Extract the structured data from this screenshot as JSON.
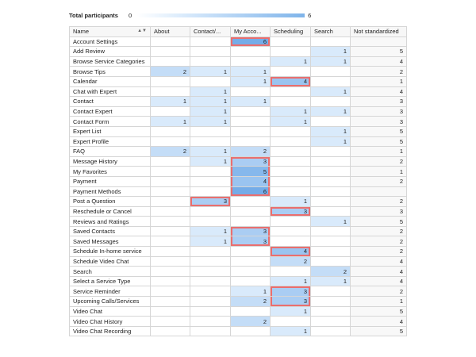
{
  "legend": {
    "label": "Total participants",
    "min": "0",
    "max": "6"
  },
  "columns": [
    "Name",
    "About",
    "Contact/...",
    "My Acco...",
    "Scheduling",
    "Search",
    "Not standardized"
  ],
  "rows": [
    {
      "name": "Account Settings",
      "cells": [
        "",
        "",
        "6",
        "",
        "",
        ""
      ]
    },
    {
      "name": "Add Review",
      "cells": [
        "",
        "",
        "",
        "",
        "1",
        "5"
      ]
    },
    {
      "name": "Browse Service Categories",
      "cells": [
        "",
        "",
        "",
        "1",
        "1",
        "4"
      ]
    },
    {
      "name": "Browse Tips",
      "cells": [
        "2",
        "1",
        "1",
        "",
        "",
        "2"
      ]
    },
    {
      "name": "Calendar",
      "cells": [
        "",
        "",
        "1",
        "4",
        "",
        "1"
      ]
    },
    {
      "name": "Chat with Expert",
      "cells": [
        "",
        "1",
        "",
        "",
        "1",
        "4"
      ]
    },
    {
      "name": "Contact",
      "cells": [
        "1",
        "1",
        "1",
        "",
        "",
        "3"
      ]
    },
    {
      "name": "Contact Expert",
      "cells": [
        "",
        "1",
        "",
        "1",
        "1",
        "3"
      ]
    },
    {
      "name": "Contact Form",
      "cells": [
        "1",
        "1",
        "",
        "1",
        "",
        "3"
      ]
    },
    {
      "name": "Expert List",
      "cells": [
        "",
        "",
        "",
        "",
        "1",
        "5"
      ]
    },
    {
      "name": "Expert Profile",
      "cells": [
        "",
        "",
        "",
        "",
        "1",
        "5"
      ]
    },
    {
      "name": "FAQ",
      "cells": [
        "2",
        "1",
        "2",
        "",
        "",
        "1"
      ]
    },
    {
      "name": "Message History",
      "cells": [
        "",
        "1",
        "3",
        "",
        "",
        "2"
      ]
    },
    {
      "name": "My Favorites",
      "cells": [
        "",
        "",
        "5",
        "",
        "",
        "1"
      ]
    },
    {
      "name": "Payment",
      "cells": [
        "",
        "",
        "4",
        "",
        "",
        "2"
      ]
    },
    {
      "name": "Payment Methods",
      "cells": [
        "",
        "",
        "6",
        "",
        "",
        ""
      ]
    },
    {
      "name": "Post a Question",
      "cells": [
        "",
        "3",
        "",
        "1",
        "",
        "2"
      ]
    },
    {
      "name": "Reschedule or Cancel",
      "cells": [
        "",
        "",
        "",
        "3",
        "",
        "3"
      ]
    },
    {
      "name": "Reviews and Ratings",
      "cells": [
        "",
        "",
        "",
        "",
        "1",
        "5"
      ]
    },
    {
      "name": "Saved Contacts",
      "cells": [
        "",
        "1",
        "3",
        "",
        "",
        "2"
      ]
    },
    {
      "name": "Saved Messages",
      "cells": [
        "",
        "1",
        "3",
        "",
        "",
        "2"
      ]
    },
    {
      "name": "Schedule In-home service",
      "cells": [
        "",
        "",
        "",
        "4",
        "",
        "2"
      ]
    },
    {
      "name": "Schedule Video Chat",
      "cells": [
        "",
        "",
        "",
        "2",
        "",
        "4"
      ]
    },
    {
      "name": "Search",
      "cells": [
        "",
        "",
        "",
        "",
        "2",
        "4"
      ]
    },
    {
      "name": "Select a Service Type",
      "cells": [
        "",
        "",
        "",
        "1",
        "1",
        "4"
      ]
    },
    {
      "name": "Service Reminder",
      "cells": [
        "",
        "",
        "1",
        "3",
        "",
        "2"
      ]
    },
    {
      "name": "Upcoming Calls/Services",
      "cells": [
        "",
        "",
        "2",
        "3",
        "",
        "1"
      ]
    },
    {
      "name": "Video Chat",
      "cells": [
        "",
        "",
        "",
        "1",
        "",
        "5"
      ]
    },
    {
      "name": "Video Chat History",
      "cells": [
        "",
        "",
        "2",
        "",
        "",
        "4"
      ]
    },
    {
      "name": "Video Chat Recording",
      "cells": [
        "",
        "",
        "",
        "1",
        "",
        "5"
      ]
    }
  ],
  "highlights": {
    "col3": [
      [
        "Account Settings"
      ],
      [
        "Message History",
        "My Favorites",
        "Payment",
        "Payment Methods"
      ],
      [
        "Saved Contacts",
        "Saved Messages"
      ]
    ],
    "col4": [
      [
        "Calendar"
      ],
      [
        "Reschedule or Cancel"
      ],
      [
        "Schedule In-home service"
      ],
      [
        "Service Reminder",
        "Upcoming Calls/Services"
      ]
    ],
    "col2": [
      [
        "Post a Question"
      ]
    ]
  },
  "colors": {
    "highlight_border": "#ea6e6e",
    "scale_low": "#d9eafb",
    "scale_high": "#74ace8"
  }
}
